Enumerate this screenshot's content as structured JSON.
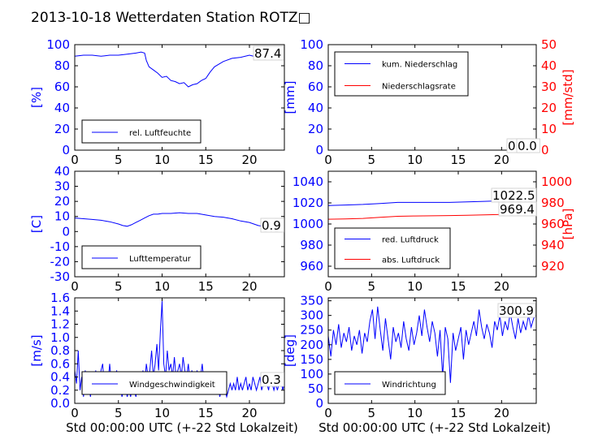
{
  "title": "2013-10-18 Wetterdaten Station ROTZ□",
  "colors": {
    "primary": "#0000ff",
    "secondary": "#ff0000",
    "axis": "#000000"
  },
  "chart_data": [
    {
      "id": "humidity",
      "type": "line",
      "x_ticks": [
        0,
        5,
        10,
        15,
        20
      ],
      "xlim": [
        0,
        24
      ],
      "xlabel": "",
      "ylim": [
        0,
        100
      ],
      "y_ticks": [
        0,
        20,
        40,
        60,
        80,
        100
      ],
      "ylabel": "[%]",
      "value_label": "87.4",
      "legend_placement": "lower-left",
      "series": [
        {
          "name": "rel. Luftfeuchte",
          "color": "#0000ff",
          "x": [
            0,
            1,
            2,
            3,
            4,
            5,
            6,
            7,
            7.6,
            8.0,
            8.2,
            8.5,
            9,
            9.5,
            10,
            10.5,
            11,
            11.5,
            12,
            12.5,
            13,
            13.5,
            14,
            14.5,
            15,
            15.5,
            16,
            17,
            18,
            19,
            20,
            21,
            22,
            23,
            24
          ],
          "values": [
            89,
            90,
            90,
            89,
            90,
            90,
            91,
            92,
            93,
            92,
            85,
            79,
            76,
            73,
            69,
            70,
            66,
            65,
            63,
            64,
            60,
            62,
            63,
            66,
            68,
            74,
            79,
            84,
            87,
            88,
            90,
            88,
            88,
            89,
            87.4
          ]
        }
      ]
    },
    {
      "id": "precipitation",
      "type": "line",
      "x_ticks": [
        0,
        5,
        10,
        15,
        20
      ],
      "xlim": [
        0,
        24
      ],
      "xlabel": "",
      "ylim": [
        0,
        100
      ],
      "y_ticks": [
        0,
        20,
        40,
        60,
        80,
        100
      ],
      "ylabel": "[mm]",
      "y2lim": [
        0,
        50
      ],
      "y2_ticks": [
        0,
        10,
        20,
        30,
        40,
        50
      ],
      "y2label": "[mm/std]",
      "value_labels": [
        "0.0",
        "0.0"
      ],
      "legend_placement": "upper-left",
      "series": [
        {
          "name": "kum. Niederschlag",
          "color": "#0000ff",
          "axis": "left",
          "x": [
            0,
            24
          ],
          "values": [
            0,
            0
          ]
        },
        {
          "name": "Niederschlagsrate",
          "color": "#ff0000",
          "axis": "right",
          "x": [
            0,
            24
          ],
          "values": [
            0,
            0
          ]
        }
      ]
    },
    {
      "id": "temperature",
      "type": "line",
      "x_ticks": [
        0,
        5,
        10,
        15,
        20
      ],
      "xlim": [
        0,
        24
      ],
      "xlabel": "",
      "ylim": [
        -30,
        40
      ],
      "y_ticks": [
        -30,
        -20,
        -10,
        0,
        10,
        20,
        30,
        40
      ],
      "ylabel": "[C]",
      "value_label": "0.9",
      "legend_placement": "lower-left",
      "series": [
        {
          "name": "Lufttemperatur",
          "color": "#0000ff",
          "x": [
            0,
            1,
            2,
            3,
            4,
            5,
            5.5,
            6,
            6.5,
            7,
            7.5,
            8,
            8.5,
            9,
            9.5,
            10,
            11,
            12,
            13,
            14,
            15,
            16,
            17,
            18,
            19,
            20,
            21,
            22,
            23,
            24
          ],
          "values": [
            9,
            8.5,
            8,
            7.5,
            6.5,
            5,
            4,
            3.5,
            4.5,
            6,
            7.5,
            9,
            10.5,
            11.5,
            11.5,
            12,
            12,
            12.5,
            12,
            12,
            11,
            10,
            9.5,
            8.5,
            7,
            6,
            4,
            3,
            2,
            0.9
          ]
        }
      ]
    },
    {
      "id": "pressure",
      "type": "line",
      "x_ticks": [
        0,
        5,
        10,
        15,
        20
      ],
      "xlim": [
        0,
        24
      ],
      "xlabel": "",
      "ylim": [
        950,
        1050
      ],
      "y_ticks": [
        960,
        980,
        1000,
        1020,
        1040
      ],
      "ylabel": "",
      "y2lim": [
        910,
        1010
      ],
      "y2_ticks": [
        920,
        940,
        960,
        980,
        1000
      ],
      "y2label": "[hPa]",
      "value_labels": [
        "1022.5",
        "969.4"
      ],
      "legend_placement": "lower-left",
      "series": [
        {
          "name": "red. Luftdruck",
          "color": "#0000ff",
          "axis": "left",
          "x": [
            0,
            2,
            4,
            6,
            8,
            10,
            12,
            14,
            16,
            18,
            20,
            22,
            24
          ],
          "values": [
            1017.5,
            1018,
            1018.5,
            1019.5,
            1020.5,
            1020.5,
            1020.5,
            1020.5,
            1021,
            1021.5,
            1022,
            1022.5,
            1022.5
          ]
        },
        {
          "name": "abs. Luftdruck",
          "color": "#ff0000",
          "axis": "right",
          "x": [
            0,
            2,
            4,
            6,
            8,
            10,
            12,
            14,
            16,
            18,
            20,
            22,
            24
          ],
          "values": [
            964.5,
            964.8,
            965.3,
            966.3,
            967.3,
            967.6,
            967.8,
            968,
            968.3,
            968.6,
            969,
            969.3,
            969.4
          ]
        }
      ]
    },
    {
      "id": "windspeed",
      "type": "line",
      "x_ticks": [
        0,
        5,
        10,
        15,
        20
      ],
      "xlim": [
        0,
        24
      ],
      "xlabel": "Std 00:00:00 UTC (+-22 Std Lokalzeit)",
      "ylim": [
        0,
        1.6
      ],
      "y_ticks": [
        0.0,
        0.2,
        0.4,
        0.6,
        0.8,
        1.0,
        1.2,
        1.4,
        1.6
      ],
      "ylabel": "[m/s]",
      "value_label": "0.3",
      "legend_placement": "lower-left",
      "series": [
        {
          "name": "Windgeschwindigkeit",
          "color": "#0000ff",
          "x": [
            0,
            0.2,
            0.4,
            0.6,
            0.8,
            1.0,
            1.2,
            1.4,
            1.6,
            1.8,
            2.0,
            2.2,
            2.4,
            2.6,
            2.8,
            3.0,
            3.2,
            3.4,
            3.6,
            3.8,
            4.0,
            4.2,
            4.4,
            4.6,
            4.8,
            5.0,
            5.2,
            5.4,
            5.6,
            5.8,
            6.0,
            6.2,
            6.4,
            6.6,
            6.8,
            7.0,
            7.2,
            7.4,
            7.6,
            7.8,
            8.0,
            8.2,
            8.4,
            8.6,
            8.8,
            9.0,
            9.2,
            9.4,
            9.6,
            9.8,
            10.0,
            10.2,
            10.4,
            10.6,
            10.8,
            11.0,
            11.2,
            11.4,
            11.6,
            11.8,
            12.0,
            12.2,
            12.4,
            12.6,
            12.8,
            13.0,
            13.2,
            13.4,
            13.6,
            13.8,
            14.0,
            14.2,
            14.4,
            14.6,
            14.8,
            15.0,
            15.2,
            15.4,
            15.6,
            15.8,
            16.0,
            16.2,
            16.4,
            16.6,
            16.8,
            17.0,
            17.2,
            17.4,
            17.6,
            17.8,
            18.0,
            18.2,
            18.4,
            18.6,
            18.8,
            19.0,
            19.2,
            19.4,
            19.6,
            19.8,
            20.0,
            20.2,
            20.4,
            20.6,
            20.8,
            21.0,
            21.2,
            21.4,
            21.6,
            21.8,
            22.0,
            22.2,
            22.4,
            22.6,
            22.8,
            23.0,
            23.2,
            23.4,
            23.6,
            23.8,
            24.0
          ],
          "values": [
            0.5,
            0.3,
            0.8,
            0.2,
            0.4,
            0.1,
            0.5,
            0.2,
            0.3,
            0.1,
            0.4,
            0.2,
            0.5,
            0.3,
            0.2,
            0.5,
            0.6,
            0.2,
            0.4,
            0.3,
            0.6,
            0.3,
            0.2,
            0.4,
            0.5,
            0.2,
            0.3,
            0.1,
            0.2,
            0.3,
            0.1,
            0.2,
            0.1,
            0.3,
            0.2,
            0.1,
            0.3,
            0.2,
            0.2,
            0.5,
            0.3,
            0.6,
            0.4,
            0.5,
            0.8,
            0.4,
            0.6,
            0.9,
            0.5,
            1.1,
            1.55,
            0.6,
            0.4,
            0.8,
            0.5,
            0.6,
            0.4,
            0.7,
            0.4,
            0.5,
            0.6,
            0.4,
            0.7,
            0.5,
            0.4,
            0.6,
            0.3,
            0.5,
            0.4,
            0.3,
            0.5,
            0.3,
            0.4,
            0.6,
            0.3,
            0.4,
            0.2,
            0.3,
            0.4,
            0.2,
            0.3,
            0.2,
            0.3,
            0.1,
            0.2,
            0.3,
            0.2,
            0.1,
            0.2,
            0.3,
            0.2,
            0.3,
            0.2,
            0.4,
            0.2,
            0.3,
            0.2,
            0.3,
            0.4,
            0.2,
            0.3,
            0.2,
            0.4,
            0.3,
            0.2,
            0.3,
            0.4,
            0.2,
            0.3,
            0.4,
            0.3,
            0.2,
            0.4,
            0.3,
            0.2,
            0.3,
            0.2,
            0.3,
            0.4,
            0.2,
            0.3
          ]
        }
      ]
    },
    {
      "id": "winddirection",
      "type": "line",
      "x_ticks": [
        0,
        5,
        10,
        15,
        20
      ],
      "xlim": [
        0,
        24
      ],
      "xlabel": "Std 00:00:00 UTC (+-22 Std Lokalzeit)",
      "ylim": [
        0,
        360
      ],
      "y_ticks": [
        0,
        50,
        100,
        150,
        200,
        250,
        300,
        350
      ],
      "ylabel": "[deg]",
      "value_label": "300.9",
      "legend_placement": "lower-left",
      "series": [
        {
          "name": "Windrichtung",
          "color": "#0000ff",
          "x": [
            0,
            0.3,
            0.6,
            0.9,
            1.2,
            1.5,
            1.8,
            2.1,
            2.4,
            2.7,
            3.0,
            3.3,
            3.6,
            3.9,
            4.2,
            4.5,
            4.8,
            5.1,
            5.4,
            5.7,
            6.0,
            6.3,
            6.6,
            6.9,
            7.2,
            7.5,
            7.8,
            8.1,
            8.4,
            8.7,
            9.0,
            9.3,
            9.6,
            9.9,
            10.2,
            10.5,
            10.8,
            11.1,
            11.4,
            11.7,
            12.0,
            12.3,
            12.6,
            12.9,
            13.2,
            13.5,
            13.8,
            14.1,
            14.4,
            14.7,
            15.0,
            15.3,
            15.6,
            15.9,
            16.2,
            16.5,
            16.8,
            17.1,
            17.4,
            17.7,
            18.0,
            18.3,
            18.6,
            18.9,
            19.2,
            19.5,
            19.8,
            20.1,
            20.4,
            20.7,
            21.0,
            21.3,
            21.6,
            21.9,
            22.2,
            22.5,
            22.8,
            23.1,
            23.4,
            23.7,
            24.0
          ],
          "values": [
            230,
            160,
            250,
            200,
            270,
            190,
            240,
            210,
            260,
            180,
            230,
            200,
            250,
            170,
            240,
            210,
            280,
            320,
            220,
            330,
            250,
            180,
            290,
            220,
            150,
            260,
            210,
            240,
            190,
            280,
            220,
            180,
            260,
            200,
            240,
            300,
            230,
            320,
            260,
            210,
            280,
            240,
            160,
            250,
            90,
            260,
            220,
            70,
            240,
            180,
            220,
            260,
            150,
            250,
            200,
            240,
            280,
            230,
            320,
            260,
            220,
            270,
            240,
            190,
            280,
            250,
            300,
            230,
            280,
            250,
            310,
            260,
            220,
            290,
            240,
            280,
            250,
            300,
            260,
            290,
            300.9
          ]
        }
      ]
    }
  ]
}
